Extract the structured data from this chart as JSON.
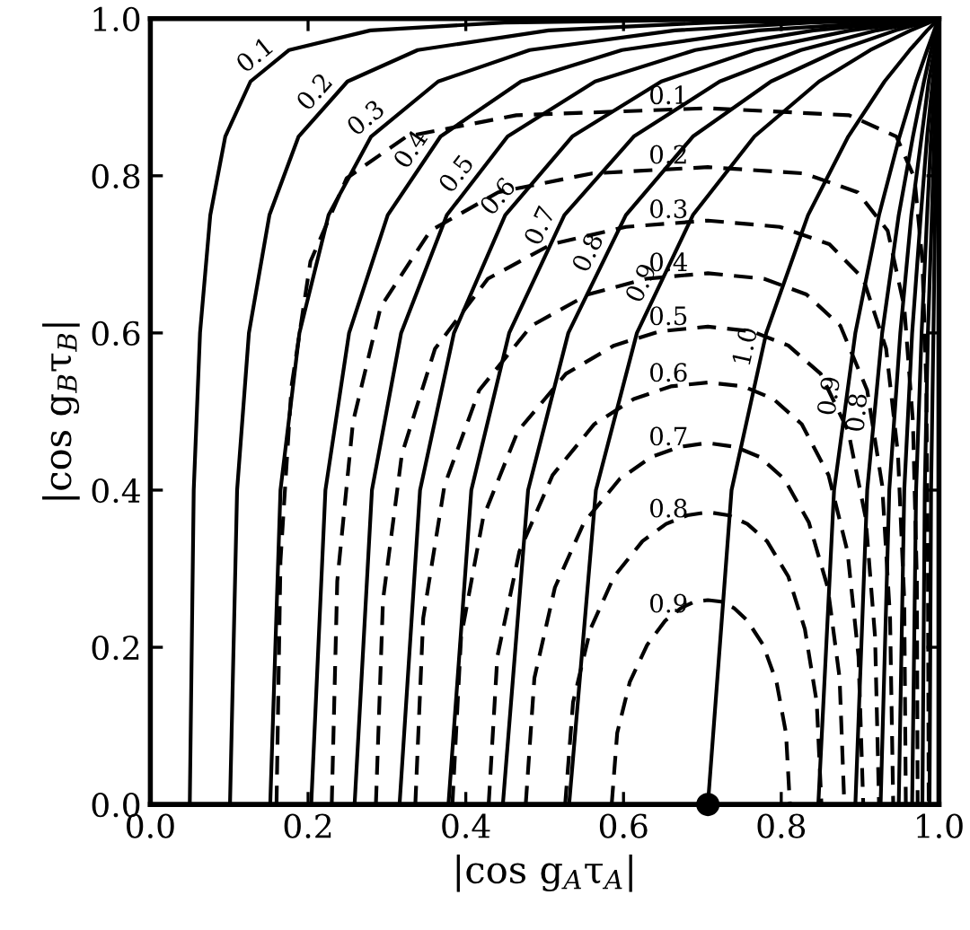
{
  "chart_data": {
    "type": "line",
    "xlabel": "|cos g$_{A}$τ$_{A}$|",
    "ylabel": "|cos g$_{B}$τ$_{B}$|",
    "xlim": [
      0,
      1
    ],
    "ylim": [
      0,
      1
    ],
    "xticks": [
      {
        "value": 0,
        "label": "0.0"
      },
      {
        "value": 0.2,
        "label": "0.2"
      },
      {
        "value": 0.4,
        "label": "0.4"
      },
      {
        "value": 0.6,
        "label": "0.6"
      },
      {
        "value": 0.8,
        "label": "0.8"
      },
      {
        "value": 1,
        "label": "1.0"
      }
    ],
    "yticks": [
      {
        "value": 0,
        "label": "0.0"
      },
      {
        "value": 0.2,
        "label": "0.2"
      },
      {
        "value": 0.4,
        "label": "0.4"
      },
      {
        "value": 0.6,
        "label": "0.6"
      },
      {
        "value": 0.8,
        "label": "0.8"
      },
      {
        "value": 1,
        "label": "1.0"
      }
    ],
    "grid": false,
    "legend": false,
    "series": [
      {
        "name": "0.1",
        "color": "#000000",
        "line_style": "solid",
        "x": [
          0.05,
          0.055,
          0.063,
          0.076,
          0.095,
          0.127,
          0.176,
          0.279,
          0.449,
          0.746,
          1
        ],
        "values": [
          0,
          0.4,
          0.6,
          0.75,
          0.85,
          0.92,
          0.96,
          0.985,
          0.995,
          0.999,
          1
        ]
      },
      {
        "name": "0.2",
        "color": "#000000",
        "line_style": "solid",
        "x": [
          0.101,
          0.11,
          0.125,
          0.151,
          0.188,
          0.25,
          0.339,
          0.505,
          0.711,
          1
        ],
        "values": [
          0,
          0.4,
          0.6,
          0.75,
          0.85,
          0.92,
          0.96,
          0.985,
          0.995,
          1
        ]
      },
      {
        "name": "0.3",
        "color": "#000000",
        "line_style": "solid",
        "x": [
          0.152,
          0.165,
          0.189,
          0.226,
          0.28,
          0.365,
          0.481,
          0.665,
          0.838,
          1
        ],
        "values": [
          0,
          0.4,
          0.6,
          0.75,
          0.85,
          0.92,
          0.96,
          0.985,
          0.995,
          1
        ]
      },
      {
        "name": "0.4",
        "color": "#000000",
        "line_style": "solid",
        "x": [
          0.204,
          0.222,
          0.252,
          0.301,
          0.368,
          0.47,
          0.598,
          0.771,
          1
        ],
        "values": [
          0,
          0.4,
          0.6,
          0.75,
          0.85,
          0.92,
          0.96,
          0.985,
          1
        ]
      },
      {
        "name": "0.5",
        "color": "#000000",
        "line_style": "solid",
        "x": [
          0.259,
          0.281,
          0.318,
          0.376,
          0.453,
          0.564,
          0.691,
          0.841,
          1
        ],
        "values": [
          0,
          0.4,
          0.6,
          0.75,
          0.85,
          0.92,
          0.96,
          0.985,
          1
        ]
      },
      {
        "name": "0.6",
        "color": "#000000",
        "line_style": "solid",
        "x": [
          0.316,
          0.342,
          0.385,
          0.45,
          0.535,
          0.648,
          0.766,
          0.888,
          1
        ],
        "values": [
          0,
          0.4,
          0.6,
          0.75,
          0.85,
          0.92,
          0.96,
          0.985,
          1
        ]
      },
      {
        "name": "0.7",
        "color": "#000000",
        "line_style": "solid",
        "x": [
          0.378,
          0.407,
          0.455,
          0.525,
          0.613,
          0.722,
          0.825,
          0.921,
          1
        ],
        "values": [
          0,
          0.4,
          0.6,
          0.75,
          0.85,
          0.92,
          0.96,
          0.985,
          1
        ]
      },
      {
        "name": "0.8",
        "color": "#000000",
        "line_style": "solid",
        "x": [
          0.447,
          0.479,
          0.53,
          0.603,
          0.688,
          0.787,
          0.873,
          0.945,
          1
        ],
        "values": [
          0,
          0.4,
          0.6,
          0.75,
          0.85,
          0.92,
          0.96,
          0.985,
          1
        ]
      },
      {
        "name": "0.9",
        "color": "#000000",
        "line_style": "solid",
        "x": [
          0.531,
          0.565,
          0.617,
          0.688,
          0.766,
          0.848,
          0.913,
          0.964,
          1
        ],
        "values": [
          0,
          0.4,
          0.6,
          0.75,
          0.85,
          0.92,
          0.96,
          0.985,
          1
        ]
      },
      {
        "name": "1.0",
        "color": "#000000",
        "line_style": "solid",
        "x": [
          0.707,
          0.737,
          0.781,
          0.834,
          0.885,
          0.931,
          0.963,
          0.985,
          1
        ],
        "values": [
          0,
          0.4,
          0.6,
          0.75,
          0.85,
          0.92,
          0.96,
          0.985,
          1
        ]
      },
      {
        "name": "0.9",
        "color": "#000000",
        "line_style": "solid",
        "x": [
          0.847,
          0.867,
          0.894,
          0.924,
          0.95,
          0.971,
          0.985,
          0.994,
          1
        ],
        "values": [
          0,
          0.4,
          0.6,
          0.75,
          0.85,
          0.92,
          0.96,
          0.985,
          1
        ]
      },
      {
        "name": "0.8",
        "color": "#000000",
        "line_style": "solid",
        "x": [
          0.894,
          0.909,
          0.928,
          0.949,
          0.967,
          0.981,
          0.99,
          0.996,
          1
        ],
        "values": [
          0,
          0.4,
          0.6,
          0.75,
          0.85,
          0.92,
          0.96,
          0.985,
          1
        ]
      },
      {
        "color": "#000000",
        "line_style": "solid",
        "x": [
          0.926,
          0.937,
          0.951,
          0.965,
          0.978,
          0.987,
          0.994,
          0.998,
          1
        ],
        "values": [
          0,
          0.4,
          0.6,
          0.75,
          0.85,
          0.92,
          0.96,
          0.985,
          1
        ]
      },
      {
        "color": "#000000",
        "line_style": "solid",
        "x": [
          0.949,
          0.956,
          0.966,
          0.977,
          0.985,
          0.992,
          0.996,
          0.998,
          1
        ],
        "values": [
          0,
          0.4,
          0.6,
          0.75,
          0.85,
          0.92,
          0.96,
          0.985,
          1
        ]
      },
      {
        "color": "#000000",
        "line_style": "solid",
        "x": [
          0.966,
          0.971,
          0.978,
          0.985,
          0.99,
          0.995,
          0.997,
          0.999,
          1
        ],
        "values": [
          0,
          0.4,
          0.6,
          0.75,
          0.85,
          0.92,
          0.96,
          0.985,
          1
        ]
      },
      {
        "color": "#000000",
        "line_style": "solid",
        "x": [
          0.979,
          0.982,
          0.986,
          0.991,
          0.994,
          0.997,
          0.998,
          0.999,
          1
        ],
        "values": [
          0,
          0.4,
          0.6,
          0.75,
          0.85,
          0.92,
          0.96,
          0.985,
          1
        ]
      },
      {
        "color": "#000000",
        "line_style": "solid",
        "x": [
          0.988,
          0.99,
          0.993,
          0.995,
          0.997,
          0.998,
          0.999,
          1,
          1
        ],
        "values": [
          0,
          0.4,
          0.6,
          0.75,
          0.85,
          0.92,
          0.96,
          0.985,
          1
        ]
      },
      {
        "name": "0.9",
        "color": "#000000",
        "line_style": "dashed",
        "x": [
          0.585,
          0.592,
          0.608,
          0.63,
          0.653,
          0.673,
          0.69,
          0.707,
          0.724,
          0.74,
          0.757,
          0.777,
          0.794,
          0.806,
          0.811
        ],
        "values": [
          0,
          0.091,
          0.156,
          0.203,
          0.234,
          0.25,
          0.258,
          0.26,
          0.258,
          0.25,
          0.234,
          0.203,
          0.156,
          0.091,
          0
        ]
      },
      {
        "name": "0.8",
        "color": "#000000",
        "line_style": "dashed",
        "x": [
          0.526,
          0.536,
          0.558,
          0.588,
          0.624,
          0.654,
          0.681,
          0.707,
          0.733,
          0.757,
          0.782,
          0.809,
          0.83,
          0.845,
          0.851
        ],
        "values": [
          0,
          0.13,
          0.223,
          0.29,
          0.335,
          0.357,
          0.368,
          0.372,
          0.368,
          0.357,
          0.335,
          0.29,
          0.223,
          0.13,
          0
        ]
      },
      {
        "name": "0.7",
        "color": "#000000",
        "line_style": "dashed",
        "x": [
          0.476,
          0.487,
          0.513,
          0.55,
          0.595,
          0.635,
          0.671,
          0.707,
          0.742,
          0.773,
          0.804,
          0.835,
          0.859,
          0.874,
          0.88
        ],
        "values": [
          0,
          0.161,
          0.276,
          0.359,
          0.414,
          0.442,
          0.455,
          0.46,
          0.455,
          0.442,
          0.414,
          0.359,
          0.276,
          0.161,
          0
        ]
      },
      {
        "name": "0.6",
        "color": "#000000",
        "line_style": "dashed",
        "x": [
          0.429,
          0.44,
          0.468,
          0.51,
          0.563,
          0.613,
          0.66,
          0.707,
          0.752,
          0.79,
          0.826,
          0.86,
          0.884,
          0.898,
          0.904
        ],
        "values": [
          0,
          0.188,
          0.322,
          0.419,
          0.484,
          0.516,
          0.532,
          0.537,
          0.532,
          0.516,
          0.484,
          0.419,
          0.322,
          0.188,
          0
        ]
      },
      {
        "name": "0.5",
        "color": "#000000",
        "line_style": "dashed",
        "x": [
          0.383,
          0.394,
          0.422,
          0.466,
          0.527,
          0.588,
          0.646,
          0.707,
          0.763,
          0.809,
          0.85,
          0.885,
          0.907,
          0.919,
          0.924
        ],
        "values": [
          0,
          0.213,
          0.365,
          0.475,
          0.548,
          0.584,
          0.602,
          0.608,
          0.602,
          0.584,
          0.548,
          0.475,
          0.365,
          0.213,
          0
        ]
      },
      {
        "name": "0.4",
        "color": "#000000",
        "line_style": "dashed",
        "x": [
          0.336,
          0.346,
          0.373,
          0.417,
          0.483,
          0.555,
          0.629,
          0.707,
          0.778,
          0.832,
          0.875,
          0.909,
          0.928,
          0.938,
          0.942
        ],
        "values": [
          0,
          0.237,
          0.406,
          0.527,
          0.609,
          0.649,
          0.669,
          0.676,
          0.669,
          0.649,
          0.609,
          0.527,
          0.406,
          0.237,
          0
        ]
      },
      {
        "name": "0.3",
        "color": "#000000",
        "line_style": "dashed",
        "x": [
          0.286,
          0.295,
          0.319,
          0.361,
          0.428,
          0.509,
          0.603,
          0.707,
          0.798,
          0.861,
          0.904,
          0.933,
          0.948,
          0.956,
          0.958
        ],
        "values": [
          0,
          0.26,
          0.446,
          0.58,
          0.669,
          0.713,
          0.735,
          0.743,
          0.735,
          0.713,
          0.669,
          0.58,
          0.446,
          0.26,
          0
        ]
      },
      {
        "name": "0.2",
        "color": "#000000",
        "line_style": "dashed",
        "x": [
          0.23,
          0.237,
          0.257,
          0.292,
          0.355,
          0.441,
          0.56,
          0.707,
          0.829,
          0.897,
          0.935,
          0.956,
          0.967,
          0.972,
          0.973
        ],
        "values": [
          0,
          0.284,
          0.487,
          0.633,
          0.73,
          0.779,
          0.803,
          0.811,
          0.803,
          0.779,
          0.73,
          0.633,
          0.487,
          0.284,
          0
        ]
      },
      {
        "name": "0.1",
        "color": "#000000",
        "line_style": "dashed",
        "x": [
          0.16,
          0.165,
          0.179,
          0.203,
          0.249,
          0.325,
          0.464,
          0.707,
          0.886,
          0.946,
          0.969,
          0.979,
          0.984,
          0.986,
          0.987
        ],
        "values": [
          0,
          0.31,
          0.532,
          0.691,
          0.797,
          0.85,
          0.877,
          0.886,
          0.877,
          0.85,
          0.797,
          0.691,
          0.532,
          0.31,
          0
        ]
      },
      {
        "type": "scatter",
        "marker": "circle",
        "color": "#000000",
        "x": [
          0.707
        ],
        "values": [
          0
        ]
      }
    ]
  }
}
